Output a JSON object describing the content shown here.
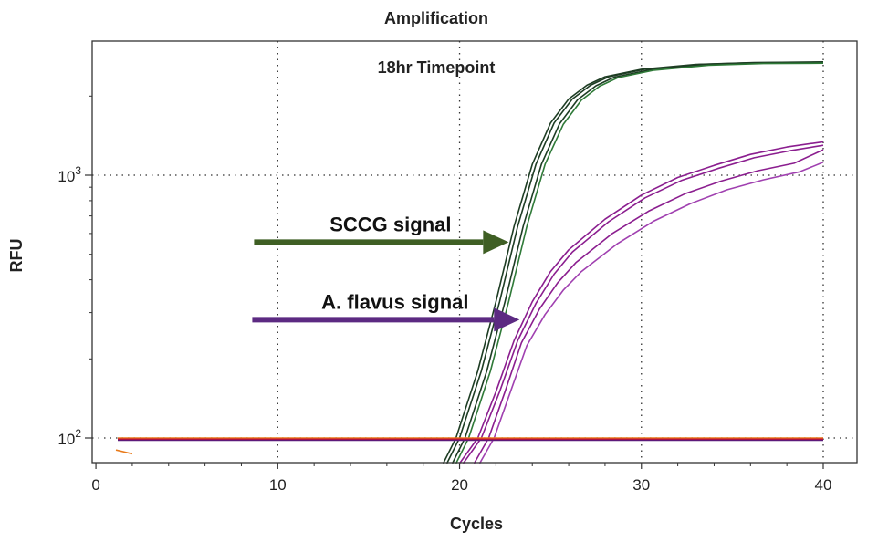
{
  "chart_data": {
    "type": "line",
    "title": "Amplification",
    "subtitle": "18hr Timepoint",
    "xlabel": "Cycles",
    "ylabel": "RFU",
    "xlim": [
      0,
      42
    ],
    "ylim": [
      80,
      3000
    ],
    "yscale": "log",
    "grid": true,
    "x_ticks": [
      0,
      10,
      20,
      30,
      40
    ],
    "y_ticks": [
      {
        "value": 100,
        "base": "10",
        "exp": "2"
      },
      {
        "value": 1000,
        "base": "10",
        "exp": "3"
      }
    ],
    "annotations": [
      {
        "text": "SCCG signal",
        "color": "#3f5f24",
        "from": [
          8.7,
          556
        ],
        "to": [
          22.7,
          556
        ]
      },
      {
        "text": "A. flavus signal",
        "color": "#5c2a82",
        "from": [
          8.6,
          282
        ],
        "to": [
          23.3,
          282
        ]
      }
    ],
    "series": [
      {
        "color": "#1e3d24",
        "points": [
          [
            19.1,
            80
          ],
          [
            19.8,
            100
          ],
          [
            21,
            180
          ],
          [
            22,
            330
          ],
          [
            23,
            640
          ],
          [
            24,
            1100
          ],
          [
            25,
            1580
          ],
          [
            26,
            1950
          ],
          [
            27,
            2200
          ],
          [
            28,
            2370
          ],
          [
            30,
            2530
          ],
          [
            33,
            2640
          ],
          [
            36,
            2680
          ],
          [
            40,
            2700
          ]
        ]
      },
      {
        "color": "#1e3d24",
        "points": [
          [
            19.3,
            80
          ],
          [
            20,
            100
          ],
          [
            21.2,
            180
          ],
          [
            22.2,
            330
          ],
          [
            23.2,
            640
          ],
          [
            24.2,
            1100
          ],
          [
            25.2,
            1580
          ],
          [
            26.2,
            1950
          ],
          [
            27.2,
            2200
          ],
          [
            28.2,
            2370
          ],
          [
            30.2,
            2530
          ],
          [
            33.2,
            2640
          ],
          [
            36.2,
            2680
          ],
          [
            40,
            2690
          ]
        ]
      },
      {
        "color": "#1e3d24",
        "points": [
          [
            19.6,
            80
          ],
          [
            20.3,
            100
          ],
          [
            21.5,
            180
          ],
          [
            22.5,
            330
          ],
          [
            23.5,
            640
          ],
          [
            24.5,
            1100
          ],
          [
            25.5,
            1570
          ],
          [
            26.5,
            1940
          ],
          [
            27.5,
            2190
          ],
          [
            28.5,
            2360
          ],
          [
            30.5,
            2520
          ],
          [
            33.5,
            2630
          ],
          [
            36.5,
            2670
          ],
          [
            40,
            2680
          ]
        ]
      },
      {
        "color": "#2f7a38",
        "points": [
          [
            19.8,
            80
          ],
          [
            20.5,
            100
          ],
          [
            21.7,
            180
          ],
          [
            22.7,
            330
          ],
          [
            23.7,
            640
          ],
          [
            24.7,
            1100
          ],
          [
            25.7,
            1560
          ],
          [
            26.7,
            1930
          ],
          [
            27.7,
            2180
          ],
          [
            28.7,
            2350
          ],
          [
            30.7,
            2510
          ],
          [
            33.7,
            2620
          ],
          [
            36.7,
            2660
          ],
          [
            40,
            2670
          ]
        ]
      },
      {
        "color": "#8b1e8f",
        "points": [
          [
            20,
            80
          ],
          [
            21,
            100
          ],
          [
            22,
            150
          ],
          [
            23,
            235
          ],
          [
            24,
            330
          ],
          [
            25,
            430
          ],
          [
            26,
            520
          ],
          [
            28,
            680
          ],
          [
            30,
            840
          ],
          [
            32,
            980
          ],
          [
            34,
            1090
          ],
          [
            36,
            1200
          ],
          [
            38,
            1280
          ],
          [
            40,
            1340
          ]
        ]
      },
      {
        "color": "#8b1e8f",
        "points": [
          [
            20.2,
            80
          ],
          [
            21.2,
            100
          ],
          [
            22.2,
            150
          ],
          [
            23.2,
            235
          ],
          [
            24.2,
            325
          ],
          [
            25.2,
            420
          ],
          [
            26.2,
            510
          ],
          [
            28.2,
            665
          ],
          [
            30.2,
            820
          ],
          [
            32.2,
            955
          ],
          [
            34.2,
            1060
          ],
          [
            36.2,
            1165
          ],
          [
            38.2,
            1240
          ],
          [
            40,
            1300
          ]
        ]
      },
      {
        "color": "#8b1e8f",
        "points": [
          [
            20.8,
            80
          ],
          [
            21.6,
            100
          ],
          [
            22.5,
            150
          ],
          [
            23.4,
            230
          ],
          [
            24.4,
            310
          ],
          [
            25.4,
            390
          ],
          [
            26.4,
            465
          ],
          [
            28.4,
            600
          ],
          [
            30.4,
            730
          ],
          [
            32.4,
            850
          ],
          [
            34.4,
            950
          ],
          [
            36.4,
            1040
          ],
          [
            38.4,
            1110
          ],
          [
            40,
            1250
          ]
        ]
      },
      {
        "color": "#a040b0",
        "points": [
          [
            21.1,
            80
          ],
          [
            21.9,
            100
          ],
          [
            22.8,
            150
          ],
          [
            23.7,
            225
          ],
          [
            24.7,
            295
          ],
          [
            25.7,
            365
          ],
          [
            26.7,
            430
          ],
          [
            28.7,
            550
          ],
          [
            30.7,
            670
          ],
          [
            32.7,
            780
          ],
          [
            34.7,
            880
          ],
          [
            36.7,
            960
          ],
          [
            38.7,
            1030
          ],
          [
            40,
            1120
          ]
        ]
      },
      {
        "color": "#e87a1a",
        "points": [
          [
            1.2,
            100
          ],
          [
            40,
            100
          ]
        ]
      },
      {
        "color": "#c8102e",
        "points": [
          [
            1.2,
            99
          ],
          [
            40,
            99
          ]
        ]
      },
      {
        "color": "#5c1a7a",
        "points": [
          [
            1.2,
            98
          ],
          [
            40,
            98
          ]
        ]
      },
      {
        "color": "#e87a1a",
        "points": [
          [
            1.1,
            90
          ],
          [
            2,
            87
          ]
        ]
      }
    ]
  }
}
